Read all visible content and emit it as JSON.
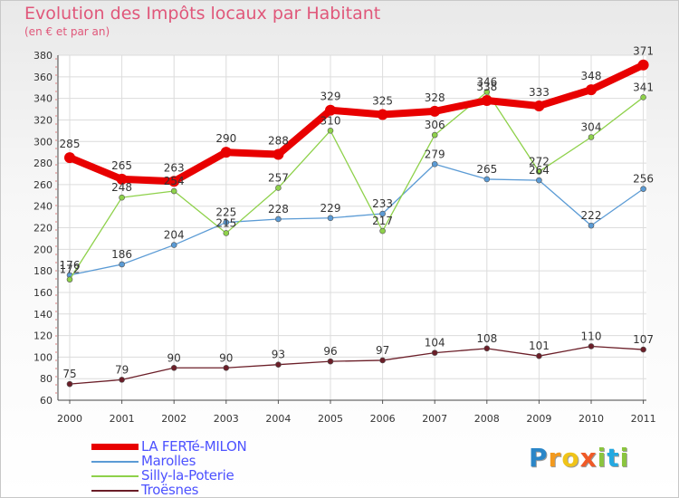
{
  "title": "Evolution des Impôts locaux par Habitant",
  "subtitle": "(en € et par an)",
  "brand": {
    "letters": [
      "P",
      "r",
      "o",
      "x",
      "i",
      "t",
      "i"
    ],
    "colors": [
      "#2a86c8",
      "#f39a1e",
      "#f0c419",
      "#f05a28",
      "#8bc53f",
      "#24a9e1",
      "#8bc53f"
    ]
  },
  "chart_data": {
    "type": "line",
    "title": "Evolution des Impôts locaux par Habitant",
    "ylabel": "(en € et par an)",
    "xlabel": "",
    "x": [
      "2000",
      "2001",
      "2002",
      "2003",
      "2004",
      "2005",
      "2006",
      "2007",
      "2008",
      "2009",
      "2010",
      "2011"
    ],
    "ylim": [
      60,
      380
    ],
    "yticks": [
      "60",
      "80",
      "100",
      "120",
      "140",
      "160",
      "180",
      "200",
      "220",
      "240",
      "260",
      "280",
      "300",
      "320",
      "340",
      "360",
      "380"
    ],
    "grid": true,
    "legend_position": "bottom-left",
    "series": [
      {
        "name": "LA FERTé-MILON",
        "color": "#e80000",
        "emphasis": "thick",
        "values": [
          285,
          265,
          263,
          290,
          288,
          329,
          325,
          328,
          338,
          333,
          348,
          371
        ],
        "labels": [
          "285",
          "265",
          "263",
          "290",
          "288",
          "329",
          "325",
          "328",
          "338",
          "333",
          "348",
          "371"
        ]
      },
      {
        "name": "Marolles",
        "color": "#5b9bd5",
        "emphasis": "thin",
        "values": [
          176,
          186,
          204,
          225,
          228,
          229,
          233,
          279,
          265,
          264,
          222,
          256
        ],
        "labels": [
          "176",
          "186",
          "204",
          "225",
          "228",
          "229",
          "233",
          "279",
          "265",
          "264",
          "222",
          "256"
        ]
      },
      {
        "name": "Silly-la-Poterie",
        "color": "#8ed14a",
        "emphasis": "thin",
        "values": [
          172,
          248,
          254,
          215,
          257,
          310,
          217,
          306,
          346,
          272,
          304,
          341
        ],
        "labels": [
          "172",
          "248",
          "254",
          "215",
          "257",
          "310",
          "217",
          "306",
          "346",
          "272",
          "304",
          "341"
        ]
      },
      {
        "name": "Troësnes",
        "color": "#6b1e28",
        "emphasis": "thin",
        "values": [
          75,
          79,
          90,
          90,
          93,
          96,
          97,
          104,
          108,
          101,
          110,
          107
        ],
        "labels": [
          "75",
          "79",
          "90",
          "90",
          "93",
          "96",
          "97",
          "104",
          "108",
          "101",
          "110",
          "107"
        ]
      }
    ]
  }
}
